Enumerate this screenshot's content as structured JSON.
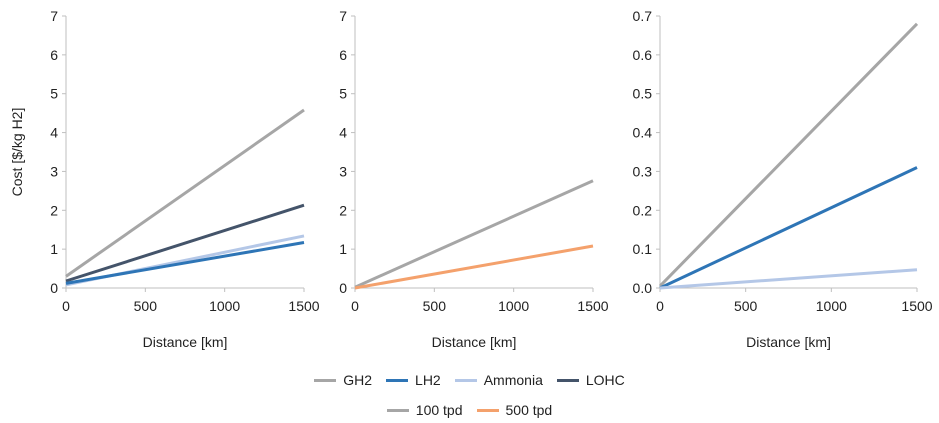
{
  "chart_data": [
    {
      "type": "line",
      "ylabel": "Cost [$/kg H2]",
      "xlabel": "Distance [km]",
      "xlim": [
        0,
        1500
      ],
      "ylim": [
        0,
        7
      ],
      "xticks": [
        "0",
        "500",
        "1000",
        "1500"
      ],
      "yticks": [
        "0",
        "1",
        "2",
        "3",
        "4",
        "5",
        "6",
        "7"
      ],
      "grid": false,
      "series": [
        {
          "name": "GH2",
          "color": "#a6a6a6",
          "x": [
            0,
            1500
          ],
          "y": [
            0.3,
            4.58
          ]
        },
        {
          "name": "LOHC",
          "color": "#44546a",
          "x": [
            0,
            1500
          ],
          "y": [
            0.18,
            2.13
          ]
        },
        {
          "name": "Ammonia",
          "color": "#b4c7e7",
          "x": [
            0,
            1500
          ],
          "y": [
            0.08,
            1.34
          ]
        },
        {
          "name": "LH2",
          "color": "#2e75b6",
          "x": [
            0,
            1500
          ],
          "y": [
            0.12,
            1.17
          ]
        }
      ]
    },
    {
      "type": "line",
      "ylabel": "",
      "xlabel": "Distance [km]",
      "xlim": [
        0,
        1500
      ],
      "ylim": [
        0,
        7
      ],
      "xticks": [
        "0",
        "500",
        "1000",
        "1500"
      ],
      "yticks": [
        "0",
        "1",
        "2",
        "3",
        "4",
        "5",
        "6",
        "7"
      ],
      "grid": false,
      "series": [
        {
          "name": "100 tpd",
          "color": "#a6a6a6",
          "x": [
            0,
            1500
          ],
          "y": [
            0.02,
            2.76
          ]
        },
        {
          "name": "500 tpd",
          "color": "#f4a16c",
          "x": [
            0,
            1500
          ],
          "y": [
            0.0,
            1.08
          ]
        }
      ]
    },
    {
      "type": "line",
      "ylabel": "",
      "xlabel": "Distance [km]",
      "xlim": [
        0,
        1500
      ],
      "ylim": [
        0,
        0.7
      ],
      "xticks": [
        "0",
        "500",
        "1000",
        "1500"
      ],
      "yticks": [
        "0.0",
        "0.1",
        "0.2",
        "0.3",
        "0.4",
        "0.5",
        "0.6",
        "0.7"
      ],
      "grid": false,
      "series": [
        {
          "name": "GH2",
          "color": "#a6a6a6",
          "x": [
            0,
            1500
          ],
          "y": [
            0.005,
            0.68
          ]
        },
        {
          "name": "LH2",
          "color": "#2e75b6",
          "x": [
            0,
            1500
          ],
          "y": [
            0.0,
            0.31
          ]
        },
        {
          "name": "Ammonia",
          "color": "#b4c7e7",
          "x": [
            0,
            1500
          ],
          "y": [
            0.0,
            0.047
          ]
        }
      ]
    }
  ],
  "legends": [
    {
      "entries": [
        {
          "label": "GH2",
          "color": "#a6a6a6"
        },
        {
          "label": "LH2",
          "color": "#2e75b6"
        },
        {
          "label": "Ammonia",
          "color": "#b4c7e7"
        },
        {
          "label": "LOHC",
          "color": "#44546a"
        }
      ]
    },
    {
      "entries": [
        {
          "label": "100 tpd",
          "color": "#a6a6a6"
        },
        {
          "label": "500 tpd",
          "color": "#f4a16c"
        }
      ]
    }
  ]
}
